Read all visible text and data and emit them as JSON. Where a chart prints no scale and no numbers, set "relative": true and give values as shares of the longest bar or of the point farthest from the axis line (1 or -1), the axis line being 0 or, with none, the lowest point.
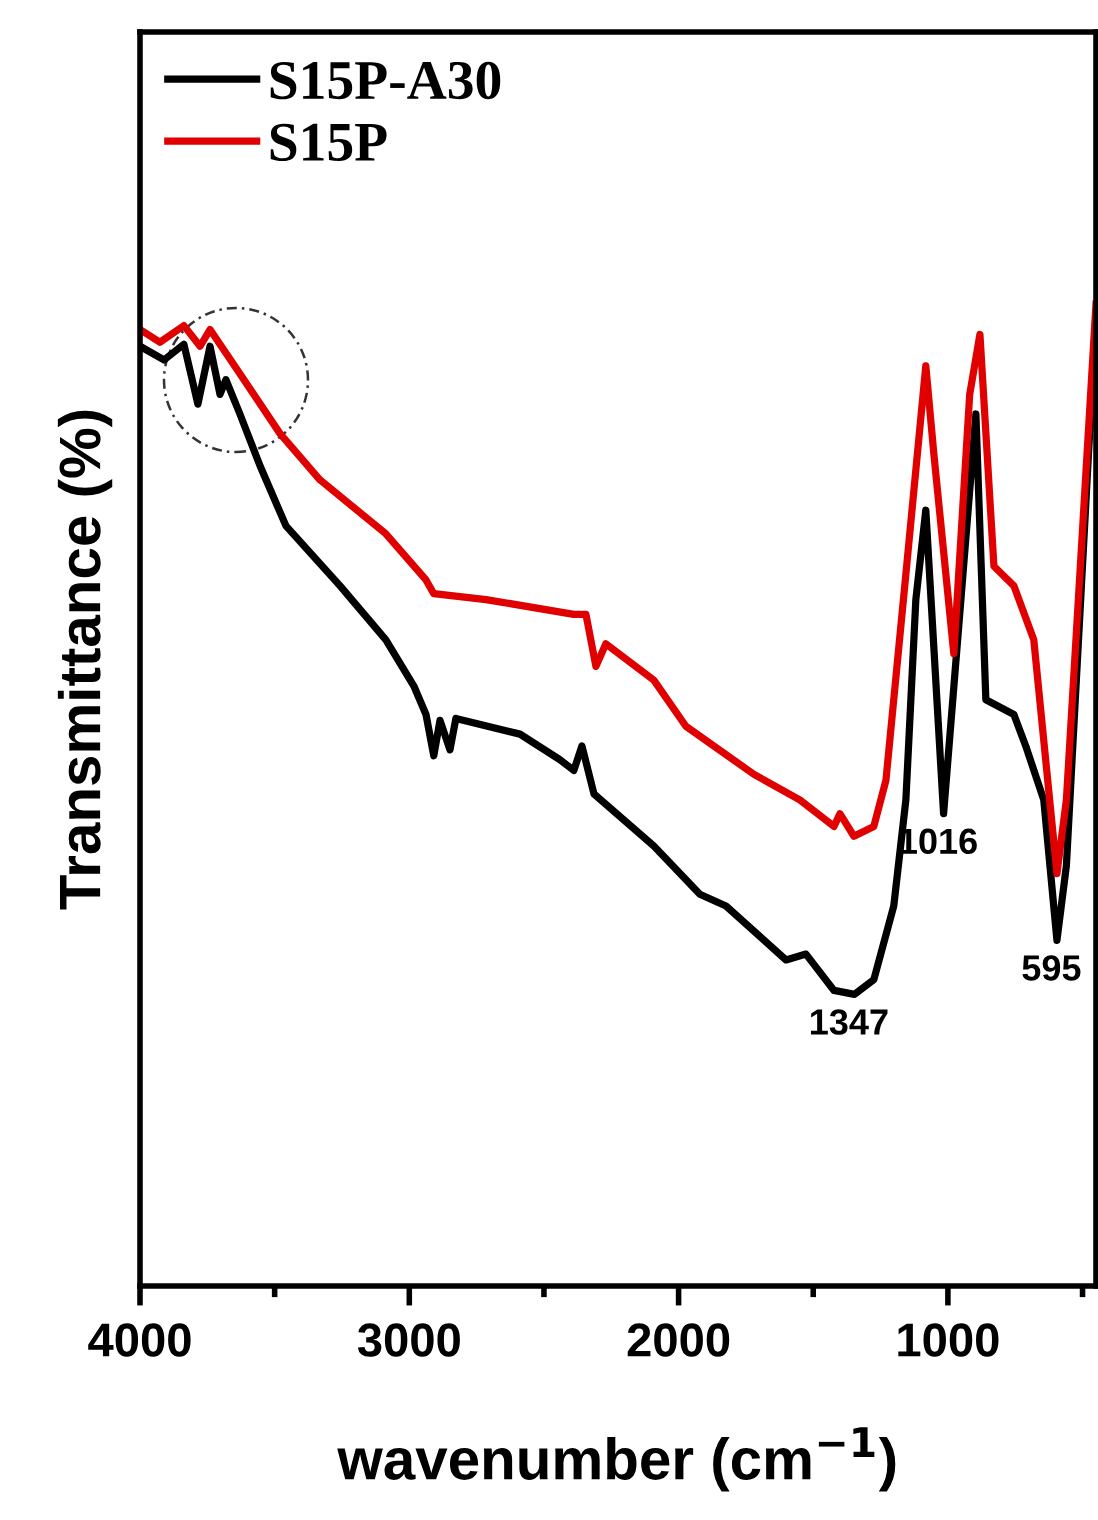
{
  "chart_data": {
    "type": "line",
    "relative": true,
    "xlabel": "wavenumber (cm$^{−1}$)",
    "ylabel": "Transmittance (%)",
    "xlim": [
      4000,
      450
    ],
    "xticks": [
      4000,
      3000,
      2000,
      1000
    ],
    "grid": false,
    "legend": "top left",
    "marker": "none",
    "line_style": "solid",
    "series": [
      {
        "name": "S15P-A30",
        "color": "#000000",
        "x": [
          4000,
          3911,
          3837,
          3785,
          3740,
          3703,
          3681,
          3629,
          3554,
          3458,
          3257,
          3087,
          2983,
          2938,
          2909,
          2886,
          2849,
          2827,
          2589,
          2441,
          2389,
          2359,
          2314,
          2092,
          1921,
          1824,
          1601,
          1527,
          1423,
          1347,
          1275,
          1201,
          1156,
          1119,
          1082,
          1016,
          896,
          859,
          755,
          711,
          644,
          595,
          560,
          450
        ],
        "values": [
          0.957,
          0.943,
          0.959,
          0.898,
          0.957,
          0.908,
          0.923,
          0.888,
          0.835,
          0.774,
          0.713,
          0.658,
          0.611,
          0.582,
          0.54,
          0.576,
          0.546,
          0.578,
          0.562,
          0.536,
          0.525,
          0.55,
          0.501,
          0.448,
          0.399,
          0.387,
          0.332,
          0.338,
          0.301,
          0.297,
          0.312,
          0.387,
          0.495,
          0.699,
          0.79,
          0.481,
          0.888,
          0.597,
          0.582,
          0.55,
          0.495,
          0.352,
          0.428,
          0.99
        ]
      },
      {
        "name": "S15P",
        "color": "#e00000",
        "x": [
          4000,
          3926,
          3837,
          3777,
          3740,
          3629,
          3480,
          3332,
          3087,
          2938,
          2909,
          2715,
          2389,
          2344,
          2307,
          2270,
          2092,
          1973,
          1720,
          1550,
          1423,
          1401,
          1349,
          1275,
          1230,
          1156,
          1082,
          1052,
          978,
          919,
          881,
          829,
          755,
          681,
          595,
          560,
          450
        ],
        "values": [
          0.974,
          0.961,
          0.978,
          0.957,
          0.974,
          0.929,
          0.868,
          0.821,
          0.766,
          0.719,
          0.705,
          0.699,
          0.684,
          0.684,
          0.631,
          0.654,
          0.617,
          0.57,
          0.521,
          0.495,
          0.468,
          0.481,
          0.458,
          0.468,
          0.515,
          0.725,
          0.937,
          0.847,
          0.644,
          0.908,
          0.969,
          0.733,
          0.713,
          0.658,
          0.42,
          0.495,
          1.0
        ]
      }
    ],
    "annotations": [
      {
        "text": "1347",
        "x": 1347,
        "y": 0.297
      },
      {
        "text": "1016",
        "x": 1016,
        "y": 0.481
      },
      {
        "text": "595",
        "x": 595,
        "y": 0.352
      }
    ]
  }
}
